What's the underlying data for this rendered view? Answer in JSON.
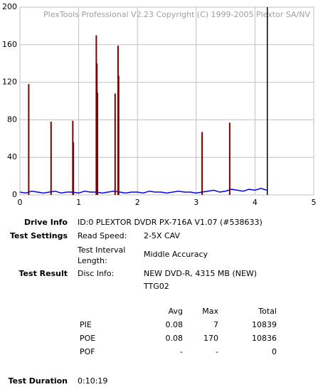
{
  "chart_data": {
    "type": "line",
    "annotation": "PlexTools Professional V2.23 Copyright (C) 1999-2005 Plextor SA/NV",
    "xlim": [
      0,
      5
    ],
    "xticks": [
      0,
      1,
      2,
      3,
      4,
      5
    ],
    "ylim": [
      0,
      200
    ],
    "yticks": [
      0,
      40,
      80,
      120,
      160,
      200
    ],
    "grid": true,
    "end_marker_x": 4.21,
    "end_marker_color": "#000000",
    "series": [
      {
        "color": "#0000ff",
        "style": "line",
        "x": [
          0,
          0.1,
          0.2,
          0.3,
          0.4,
          0.5,
          0.6,
          0.7,
          0.8,
          0.9,
          1,
          1.1,
          1.2,
          1.3,
          1.4,
          1.5,
          1.6,
          1.7,
          1.8,
          1.9,
          2,
          2.1,
          2.2,
          2.3,
          2.4,
          2.5,
          2.6,
          2.7,
          2.8,
          2.9,
          3,
          3.1,
          3.2,
          3.3,
          3.4,
          3.5,
          3.6,
          3.7,
          3.8,
          3.9,
          4,
          4.1,
          4.2
        ],
        "values": [
          3,
          2,
          4,
          3,
          2,
          3,
          4,
          2,
          3,
          3,
          2,
          4,
          3,
          3,
          2,
          3,
          4,
          3,
          2,
          3,
          3,
          2,
          4,
          3,
          3,
          2,
          3,
          4,
          3,
          3,
          2,
          3,
          4,
          5,
          3,
          4,
          6,
          5,
          4,
          6,
          5,
          7,
          5
        ]
      },
      {
        "color": "#800000",
        "style": "stem",
        "x": [
          0.15,
          0.53,
          0.9,
          0.91,
          1.3,
          1.31,
          1.32,
          1.62,
          1.67,
          1.68,
          3.1,
          3.57
        ],
        "values": [
          118,
          78,
          79,
          56,
          170,
          140,
          109,
          108,
          159,
          127,
          67,
          77
        ]
      }
    ]
  },
  "info": {
    "drive": {
      "label": "Drive Info",
      "value": "ID:0 PLEXTOR DVDR PX-716A V1.07 (#538633)"
    },
    "settings": {
      "label": "Test Settings",
      "read_speed_label": "Read Speed:",
      "read_speed": "2-5X CAV",
      "interval_label": "Test Interval Length:",
      "interval": "Middle Accuracy"
    },
    "result": {
      "label": "Test Result",
      "disc_label": "Disc Info:",
      "disc_line1": "NEW DVD-R, 4315 MB (NEW)",
      "disc_line2": "TTG02"
    },
    "stats": {
      "columns": [
        "Avg",
        "Max",
        "Total"
      ],
      "rows": [
        {
          "name": "PIE",
          "cells": [
            "0.08",
            "7",
            "10839"
          ]
        },
        {
          "name": "POE",
          "cells": [
            "0.08",
            "170",
            "10836"
          ]
        },
        {
          "name": "POF",
          "cells": [
            "-",
            "-",
            "0"
          ]
        }
      ]
    },
    "duration": {
      "label": "Test Duration",
      "value": "0:10:19"
    }
  }
}
